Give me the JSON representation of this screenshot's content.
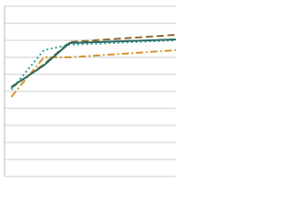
{
  "chart_data": {
    "type": "line",
    "x": [
      4,
      23,
      38,
      100
    ],
    "xlim": [
      0,
      100
    ],
    "ylim": [
      0,
      100
    ],
    "yticks": [
      0,
      10,
      20,
      30,
      40,
      50,
      60,
      70,
      80,
      90,
      100
    ],
    "grid": true,
    "series": [
      {
        "color": "#8b6a2b",
        "dash": "8,4",
        "values": [
          52.1,
          65.8,
          79,
          83.2
        ]
      },
      {
        "color": "#2aa0a0",
        "dash": "2,3",
        "values": [
          51,
          74.2,
          77.4,
          80
        ]
      },
      {
        "color": "#d4922a",
        "dash": "8,3,2,3",
        "values": [
          46.8,
          70,
          70,
          74.2
        ]
      },
      {
        "color": "#2a6b5e",
        "dash": "none",
        "values": [
          52.6,
          65.3,
          78.4,
          80.5
        ]
      }
    ]
  }
}
